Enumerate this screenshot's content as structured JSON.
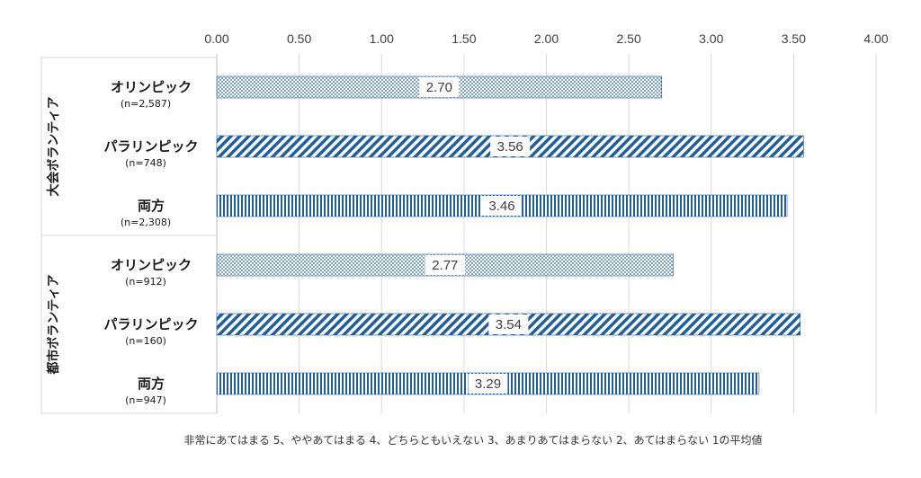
{
  "chart_data": {
    "type": "bar",
    "orientation": "horizontal",
    "xlim": [
      0,
      4
    ],
    "x_ticks": [
      "0.00",
      "0.50",
      "1.00",
      "1.50",
      "2.00",
      "2.50",
      "3.00",
      "3.50",
      "4.00"
    ],
    "grid": "vertical",
    "groups": [
      {
        "label": "大会ボランティア",
        "bars": [
          {
            "label": "オリンピック",
            "count": "(n=2,587)",
            "value": 2.7,
            "value_label": "2.70",
            "pattern": "dots"
          },
          {
            "label": "パラリンピック",
            "count": "(n=748)",
            "value": 3.56,
            "value_label": "3.56",
            "pattern": "diagonal"
          },
          {
            "label": "両方",
            "count": "(n=2,308)",
            "value": 3.46,
            "value_label": "3.46",
            "pattern": "vertical"
          }
        ]
      },
      {
        "label": "都市ボランティア",
        "bars": [
          {
            "label": "オリンピック",
            "count": "(n=912)",
            "value": 2.77,
            "value_label": "2.77",
            "pattern": "dots"
          },
          {
            "label": "パラリンピック",
            "count": "(n=160)",
            "value": 3.54,
            "value_label": "3.54",
            "pattern": "diagonal"
          },
          {
            "label": "両方",
            "count": "(n=947)",
            "value": 3.29,
            "value_label": "3.29",
            "pattern": "vertical"
          }
        ]
      }
    ],
    "bar_color": "#1f5f9e",
    "footnote": "非常にあてはまる 5、ややあてはまる 4、どちらともいえない 3、あまりあてはまらない 2、あてはまらない 1の平均値"
  }
}
